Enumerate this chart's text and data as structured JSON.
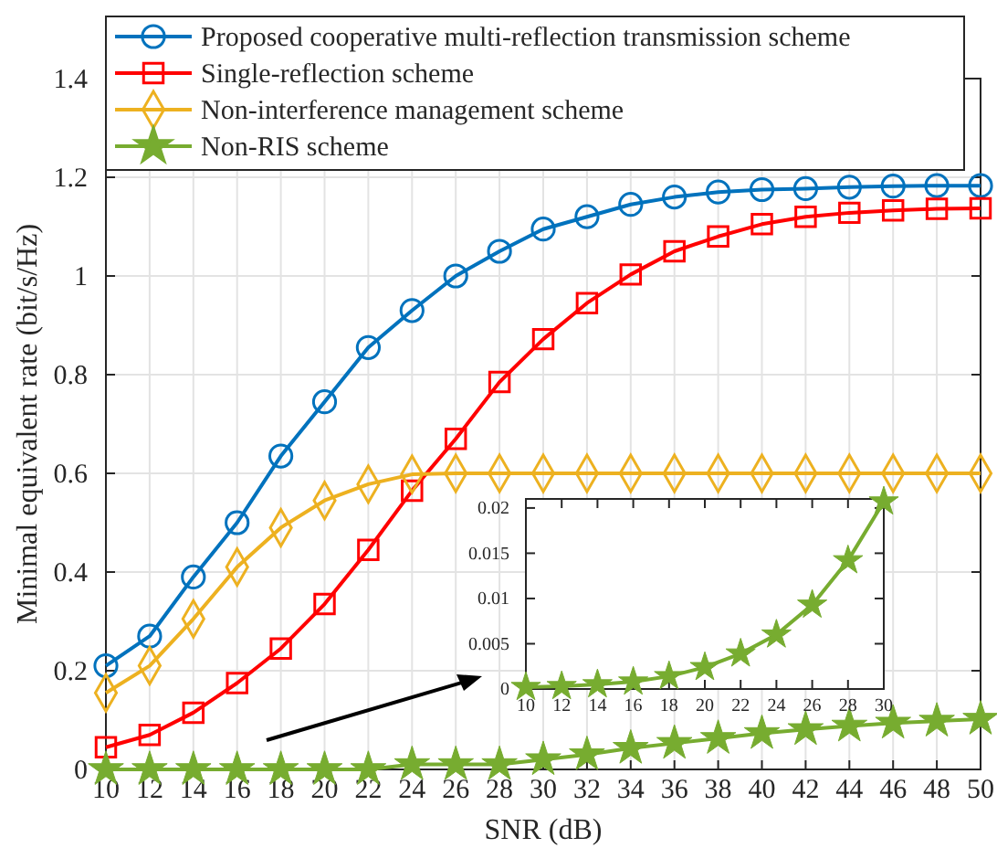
{
  "chart_data": [
    {
      "type": "line",
      "xlabel": "SNR (dB)",
      "ylabel": "Minimal equivalent rate (bit/s/Hz)",
      "x": [
        10,
        12,
        14,
        16,
        18,
        20,
        22,
        24,
        26,
        28,
        30,
        32,
        34,
        36,
        38,
        40,
        42,
        44,
        46,
        48,
        50
      ],
      "series": [
        {
          "name": "Proposed cooperative multi-reflection transmission scheme",
          "color": "#0072bd",
          "marker": "circle",
          "values": [
            0.21,
            0.27,
            0.39,
            0.5,
            0.635,
            0.745,
            0.855,
            0.93,
            1.0,
            1.05,
            1.095,
            1.12,
            1.145,
            1.16,
            1.17,
            1.175,
            1.177,
            1.18,
            1.182,
            1.183,
            1.183
          ]
        },
        {
          "name": "Single-reflection scheme",
          "color": "#ff0000",
          "marker": "square",
          "values": [
            0.045,
            0.07,
            0.115,
            0.175,
            0.245,
            0.335,
            0.445,
            0.565,
            0.67,
            0.785,
            0.872,
            0.945,
            1.003,
            1.05,
            1.08,
            1.105,
            1.12,
            1.128,
            1.133,
            1.136,
            1.137
          ]
        },
        {
          "name": "Non-interference management scheme",
          "color": "#edb120",
          "marker": "diamond",
          "values": [
            0.155,
            0.21,
            0.305,
            0.41,
            0.49,
            0.545,
            0.578,
            0.598,
            0.6,
            0.6,
            0.6,
            0.6,
            0.6,
            0.6,
            0.6,
            0.6,
            0.6,
            0.6,
            0.6,
            0.6,
            0.6
          ]
        },
        {
          "name": "Non-RIS scheme",
          "color": "#77ac30",
          "marker": "star",
          "values": [
            0,
            0,
            0,
            0,
            0,
            0,
            0,
            0.01,
            0.01,
            0.01,
            0.02,
            0.03,
            0.043,
            0.053,
            0.063,
            0.073,
            0.081,
            0.088,
            0.094,
            0.098,
            0.102
          ]
        }
      ],
      "xlim": [
        10,
        50
      ],
      "xticks": [
        10,
        12,
        14,
        16,
        18,
        20,
        22,
        24,
        26,
        28,
        30,
        32,
        34,
        36,
        38,
        40,
        42,
        44,
        46,
        48,
        50
      ],
      "ylim": [
        0,
        1.4
      ],
      "yticks": [
        0,
        0.2,
        0.4,
        0.6,
        0.8,
        1,
        1.2,
        1.4
      ],
      "grid": true,
      "legend": "top left"
    },
    {
      "type": "line",
      "x": [
        10,
        12,
        14,
        16,
        18,
        20,
        22,
        24,
        26,
        28,
        30
      ],
      "series": [
        {
          "color": "#77ac30",
          "marker": "star",
          "values": [
            0.0002,
            0.0003,
            0.0005,
            0.0008,
            0.0014,
            0.0024,
            0.0039,
            0.006,
            0.0093,
            0.0142,
            0.0207
          ]
        }
      ],
      "xlim": [
        10,
        30
      ],
      "xticks": [
        10,
        12,
        14,
        16,
        18,
        20,
        22,
        24,
        26,
        28,
        30
      ],
      "ylim": [
        0,
        0.021
      ],
      "yticks": [
        0,
        0.005,
        0.01,
        0.015,
        0.02
      ],
      "grid": false
    }
  ]
}
